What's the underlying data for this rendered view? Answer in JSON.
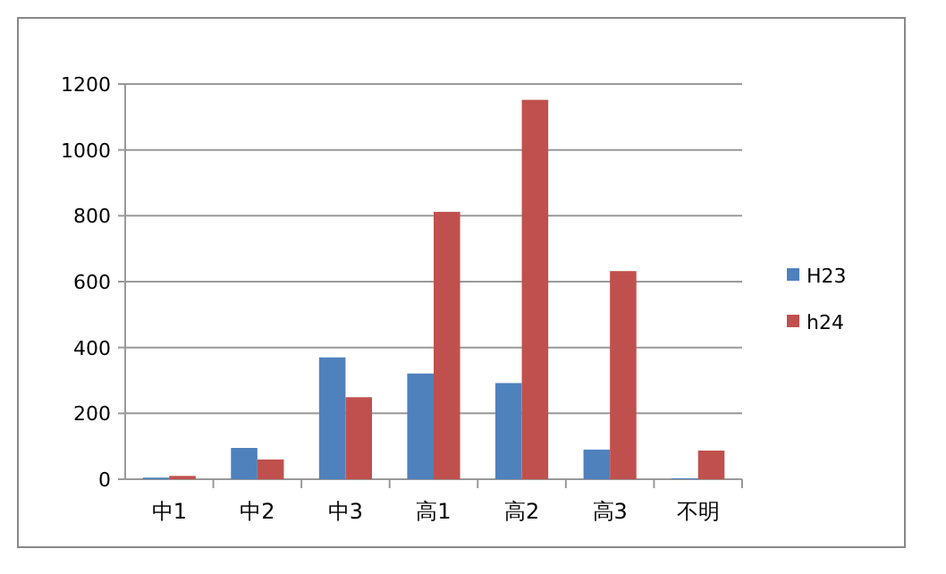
{
  "chart_data": {
    "type": "bar",
    "categories": [
      "中1",
      "中2",
      "中3",
      "高1",
      "高2",
      "高3",
      "不明"
    ],
    "series": [
      {
        "name": "H23",
        "color": "#4f81bd",
        "values": [
          5,
          95,
          370,
          321,
          292,
          90,
          3
        ]
      },
      {
        "name": "h24",
        "color": "#c0504d",
        "values": [
          10,
          60,
          249,
          812,
          1152,
          632,
          87
        ]
      }
    ],
    "ylim": [
      0,
      1200
    ],
    "yticks": [
      0,
      200,
      400,
      600,
      800,
      1000,
      1200
    ],
    "grid": "y",
    "legend": "right"
  }
}
